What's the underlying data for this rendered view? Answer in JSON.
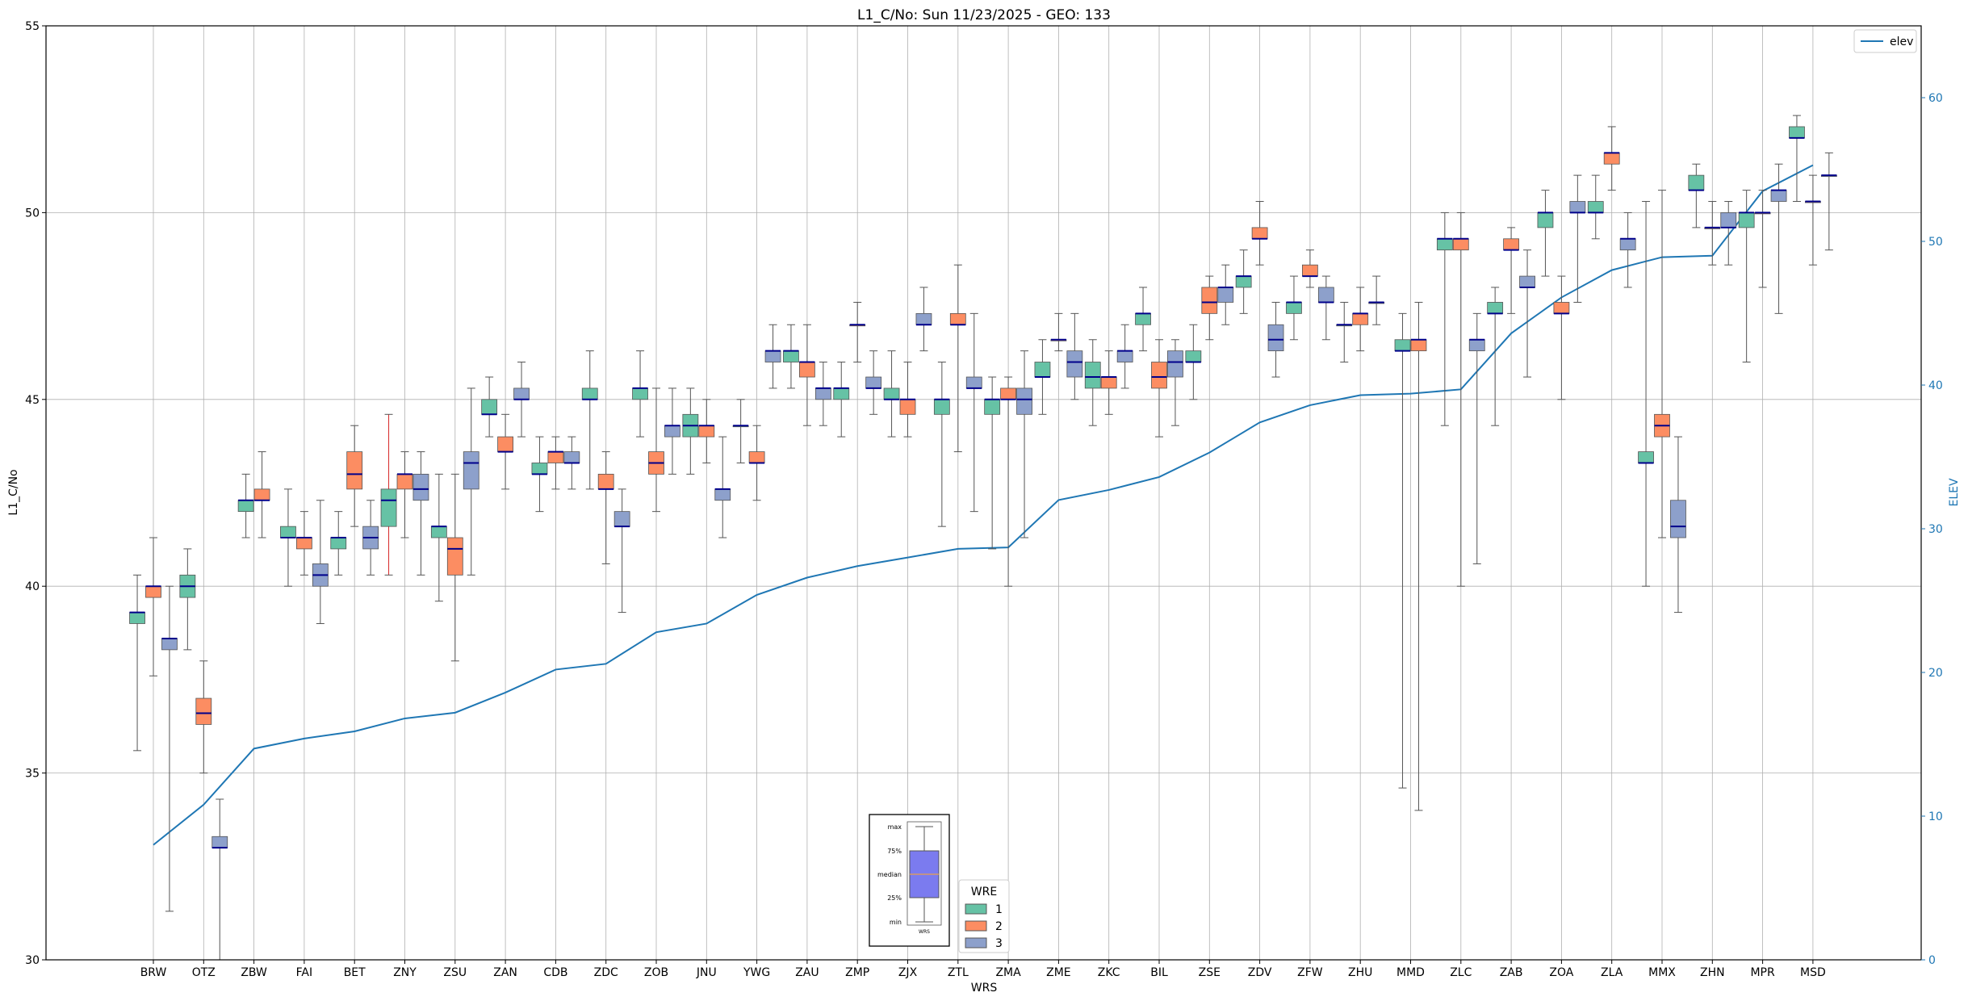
{
  "chart_data": {
    "type": "boxplot",
    "title": "L1_C/No: Sun 11/23/2025 - GEO: 133",
    "xlabel": "WRS",
    "ylabel": "L1_C/No",
    "y2label": "ELEV",
    "ylim": [
      30,
      55
    ],
    "y2lim": [
      0,
      65
    ],
    "yticks": [
      "30",
      "35",
      "40",
      "45",
      "50",
      "55"
    ],
    "y2ticks": [
      "0",
      "10",
      "20",
      "30",
      "40",
      "50",
      "60"
    ],
    "grid": true,
    "colors": {
      "1": "#66c2a5",
      "2": "#fc8d62",
      "3": "#8da0cb",
      "median": "#00008b",
      "elev": "#1f77b4",
      "red_whisker": "#d62728"
    },
    "categories": [
      "BRW",
      "OTZ",
      "ZBW",
      "FAI",
      "BET",
      "ZNY",
      "ZSU",
      "ZAN",
      "CDB",
      "ZDC",
      "ZOB",
      "JNU",
      "YWG",
      "ZAU",
      "ZMP",
      "ZJX",
      "ZTL",
      "ZMA",
      "ZME",
      "ZKC",
      "BIL",
      "ZSE",
      "ZDV",
      "ZFW",
      "ZHU",
      "MMD",
      "ZLC",
      "ZAB",
      "ZOA",
      "ZLA",
      "MMX",
      "ZHN",
      "MPR",
      "MSD"
    ],
    "elev": {
      "name": "elev",
      "values": [
        8.0,
        10.8,
        14.7,
        15.4,
        15.9,
        16.8,
        17.2,
        18.6,
        20.2,
        20.6,
        22.8,
        23.4,
        25.4,
        26.6,
        27.4,
        28.0,
        28.6,
        28.7,
        32.0,
        32.7,
        33.6,
        35.3,
        37.4,
        38.6,
        39.3,
        39.4,
        39.7,
        43.6,
        46.1,
        48.0,
        48.9,
        49.0,
        53.5,
        55.3
      ]
    },
    "boxes": [
      {
        "cat": "BRW",
        "wre": 1,
        "min": 35.6,
        "q1": 39.0,
        "med": 39.3,
        "q3": 39.3,
        "max": 40.3
      },
      {
        "cat": "BRW",
        "wre": 2,
        "min": 37.6,
        "q1": 39.7,
        "med": 40.0,
        "q3": 40.0,
        "max": 41.3
      },
      {
        "cat": "BRW",
        "wre": 3,
        "min": 31.3,
        "q1": 38.3,
        "med": 38.6,
        "q3": 38.6,
        "max": 40.0
      },
      {
        "cat": "OTZ",
        "wre": 1,
        "min": 38.3,
        "q1": 39.7,
        "med": 40.0,
        "q3": 40.3,
        "max": 41.0
      },
      {
        "cat": "OTZ",
        "wre": 2,
        "min": 35.0,
        "q1": 36.3,
        "med": 36.6,
        "q3": 37.0,
        "max": 38.0
      },
      {
        "cat": "OTZ",
        "wre": 3,
        "min": 30.0,
        "q1": 33.0,
        "med": 33.0,
        "q3": 33.3,
        "max": 34.3
      },
      {
        "cat": "ZBW",
        "wre": 1,
        "min": 41.3,
        "q1": 42.0,
        "med": 42.3,
        "q3": 42.3,
        "max": 43.0
      },
      {
        "cat": "ZBW",
        "wre": 2,
        "min": 41.3,
        "q1": 42.3,
        "med": 42.3,
        "q3": 42.6,
        "max": 43.6
      },
      {
        "cat": "FAI",
        "wre": 1,
        "min": 40.0,
        "q1": 41.3,
        "med": 41.3,
        "q3": 41.6,
        "max": 42.6
      },
      {
        "cat": "FAI",
        "wre": 2,
        "min": 40.3,
        "q1": 41.0,
        "med": 41.3,
        "q3": 41.3,
        "max": 42.0
      },
      {
        "cat": "FAI",
        "wre": 3,
        "min": 39.0,
        "q1": 40.0,
        "med": 40.3,
        "q3": 40.6,
        "max": 42.3
      },
      {
        "cat": "BET",
        "wre": 1,
        "min": 40.3,
        "q1": 41.0,
        "med": 41.3,
        "q3": 41.3,
        "max": 42.0
      },
      {
        "cat": "BET",
        "wre": 2,
        "min": 41.6,
        "q1": 42.6,
        "med": 43.0,
        "q3": 43.6,
        "max": 44.3
      },
      {
        "cat": "BET",
        "wre": 3,
        "min": 40.3,
        "q1": 41.0,
        "med": 41.3,
        "q3": 41.6,
        "max": 42.3
      },
      {
        "cat": "ZNY",
        "wre": 1,
        "min": 40.3,
        "q1": 41.6,
        "med": 42.3,
        "q3": 42.6,
        "max": 44.6,
        "whisker": "red"
      },
      {
        "cat": "ZNY",
        "wre": 2,
        "min": 41.3,
        "q1": 42.6,
        "med": 43.0,
        "q3": 43.0,
        "max": 43.6
      },
      {
        "cat": "ZNY",
        "wre": 3,
        "min": 40.3,
        "q1": 42.3,
        "med": 42.6,
        "q3": 43.0,
        "max": 43.6
      },
      {
        "cat": "ZSU",
        "wre": 1,
        "min": 39.6,
        "q1": 41.3,
        "med": 41.6,
        "q3": 41.6,
        "max": 43.0
      },
      {
        "cat": "ZSU",
        "wre": 2,
        "min": 38.0,
        "q1": 40.3,
        "med": 41.0,
        "q3": 41.3,
        "max": 43.0
      },
      {
        "cat": "ZSU",
        "wre": 3,
        "min": 40.3,
        "q1": 42.6,
        "med": 43.3,
        "q3": 43.6,
        "max": 45.3
      },
      {
        "cat": "ZAN",
        "wre": 1,
        "min": 44.0,
        "q1": 44.6,
        "med": 44.6,
        "q3": 45.0,
        "max": 45.6
      },
      {
        "cat": "ZAN",
        "wre": 2,
        "min": 42.6,
        "q1": 43.6,
        "med": 43.6,
        "q3": 44.0,
        "max": 44.6
      },
      {
        "cat": "ZAN",
        "wre": 3,
        "min": 44.0,
        "q1": 45.0,
        "med": 45.0,
        "q3": 45.3,
        "max": 46.0
      },
      {
        "cat": "CDB",
        "wre": 1,
        "min": 42.0,
        "q1": 43.0,
        "med": 43.0,
        "q3": 43.3,
        "max": 44.0
      },
      {
        "cat": "CDB",
        "wre": 2,
        "min": 42.6,
        "q1": 43.3,
        "med": 43.6,
        "q3": 43.6,
        "max": 44.0
      },
      {
        "cat": "CDB",
        "wre": 3,
        "min": 42.6,
        "q1": 43.3,
        "med": 43.3,
        "q3": 43.6,
        "max": 44.0
      },
      {
        "cat": "ZDC",
        "wre": 1,
        "min": 42.6,
        "q1": 45.0,
        "med": 45.0,
        "q3": 45.3,
        "max": 46.3
      },
      {
        "cat": "ZDC",
        "wre": 2,
        "min": 40.6,
        "q1": 42.6,
        "med": 42.6,
        "q3": 43.0,
        "max": 43.6
      },
      {
        "cat": "ZDC",
        "wre": 3,
        "min": 39.3,
        "q1": 41.6,
        "med": 41.6,
        "q3": 42.0,
        "max": 42.6
      },
      {
        "cat": "ZOB",
        "wre": 1,
        "min": 44.0,
        "q1": 45.0,
        "med": 45.3,
        "q3": 45.3,
        "max": 46.3
      },
      {
        "cat": "ZOB",
        "wre": 2,
        "min": 42.0,
        "q1": 43.0,
        "med": 43.3,
        "q3": 43.6,
        "max": 45.3
      },
      {
        "cat": "ZOB",
        "wre": 3,
        "min": 43.0,
        "q1": 44.0,
        "med": 44.3,
        "q3": 44.3,
        "max": 45.3
      },
      {
        "cat": "JNU",
        "wre": 1,
        "min": 43.0,
        "q1": 44.0,
        "med": 44.3,
        "q3": 44.6,
        "max": 45.3
      },
      {
        "cat": "JNU",
        "wre": 2,
        "min": 43.3,
        "q1": 44.0,
        "med": 44.3,
        "q3": 44.3,
        "max": 45.0
      },
      {
        "cat": "JNU",
        "wre": 3,
        "min": 41.3,
        "q1": 42.3,
        "med": 42.6,
        "q3": 42.6,
        "max": 44.0
      },
      {
        "cat": "YWG",
        "wre": 1,
        "min": 43.3,
        "q1": 44.3,
        "med": 44.3,
        "q3": 44.3,
        "max": 45.0
      },
      {
        "cat": "YWG",
        "wre": 2,
        "min": 42.3,
        "q1": 43.3,
        "med": 43.3,
        "q3": 43.6,
        "max": 44.3
      },
      {
        "cat": "YWG",
        "wre": 3,
        "min": 45.3,
        "q1": 46.0,
        "med": 46.3,
        "q3": 46.3,
        "max": 47.0
      },
      {
        "cat": "ZAU",
        "wre": 1,
        "min": 45.3,
        "q1": 46.0,
        "med": 46.3,
        "q3": 46.3,
        "max": 47.0
      },
      {
        "cat": "ZAU",
        "wre": 2,
        "min": 44.3,
        "q1": 45.6,
        "med": 46.0,
        "q3": 46.0,
        "max": 47.0
      },
      {
        "cat": "ZAU",
        "wre": 3,
        "min": 44.3,
        "q1": 45.0,
        "med": 45.3,
        "q3": 45.3,
        "max": 46.0
      },
      {
        "cat": "ZMP",
        "wre": 1,
        "min": 44.0,
        "q1": 45.0,
        "med": 45.3,
        "q3": 45.3,
        "max": 46.0
      },
      {
        "cat": "ZMP",
        "wre": 2,
        "min": 46.0,
        "q1": 47.0,
        "med": 47.0,
        "q3": 47.0,
        "max": 47.6
      },
      {
        "cat": "ZMP",
        "wre": 3,
        "min": 44.6,
        "q1": 45.3,
        "med": 45.3,
        "q3": 45.6,
        "max": 46.3
      },
      {
        "cat": "ZJX",
        "wre": 1,
        "min": 44.0,
        "q1": 45.0,
        "med": 45.0,
        "q3": 45.3,
        "max": 46.3
      },
      {
        "cat": "ZJX",
        "wre": 2,
        "min": 44.0,
        "q1": 44.6,
        "med": 45.0,
        "q3": 45.0,
        "max": 46.0
      },
      {
        "cat": "ZJX",
        "wre": 3,
        "min": 46.3,
        "q1": 47.0,
        "med": 47.0,
        "q3": 47.3,
        "max": 48.0
      },
      {
        "cat": "ZTL",
        "wre": 1,
        "min": 41.6,
        "q1": 44.6,
        "med": 45.0,
        "q3": 45.0,
        "max": 46.0
      },
      {
        "cat": "ZTL",
        "wre": 2,
        "min": 43.6,
        "q1": 47.0,
        "med": 47.0,
        "q3": 47.3,
        "max": 48.6
      },
      {
        "cat": "ZTL",
        "wre": 3,
        "min": 42.0,
        "q1": 45.3,
        "med": 45.3,
        "q3": 45.6,
        "max": 47.3
      },
      {
        "cat": "ZMA",
        "wre": 1,
        "min": 41.0,
        "q1": 44.6,
        "med": 45.0,
        "q3": 45.0,
        "max": 45.6
      },
      {
        "cat": "ZMA",
        "wre": 2,
        "min": 40.0,
        "q1": 45.0,
        "med": 45.0,
        "q3": 45.3,
        "max": 45.6
      },
      {
        "cat": "ZMA",
        "wre": 3,
        "min": 41.3,
        "q1": 44.6,
        "med": 45.0,
        "q3": 45.3,
        "max": 46.3
      },
      {
        "cat": "ZME",
        "wre": 1,
        "min": 44.6,
        "q1": 45.6,
        "med": 45.6,
        "q3": 46.0,
        "max": 46.6
      },
      {
        "cat": "ZME",
        "wre": 2,
        "min": 46.3,
        "q1": 46.6,
        "med": 46.6,
        "q3": 46.6,
        "max": 47.3
      },
      {
        "cat": "ZME",
        "wre": 3,
        "min": 45.0,
        "q1": 45.6,
        "med": 46.0,
        "q3": 46.3,
        "max": 47.3
      },
      {
        "cat": "ZKC",
        "wre": 1,
        "min": 44.3,
        "q1": 45.3,
        "med": 45.6,
        "q3": 46.0,
        "max": 46.6
      },
      {
        "cat": "ZKC",
        "wre": 2,
        "min": 44.6,
        "q1": 45.3,
        "med": 45.6,
        "q3": 45.6,
        "max": 46.3
      },
      {
        "cat": "ZKC",
        "wre": 3,
        "min": 45.3,
        "q1": 46.0,
        "med": 46.3,
        "q3": 46.3,
        "max": 47.0
      },
      {
        "cat": "BIL",
        "wre": 1,
        "min": 46.3,
        "q1": 47.0,
        "med": 47.3,
        "q3": 47.3,
        "max": 48.0
      },
      {
        "cat": "BIL",
        "wre": 2,
        "min": 44.0,
        "q1": 45.3,
        "med": 45.6,
        "q3": 46.0,
        "max": 46.6
      },
      {
        "cat": "BIL",
        "wre": 3,
        "min": 44.3,
        "q1": 45.6,
        "med": 46.0,
        "q3": 46.3,
        "max": 46.6
      },
      {
        "cat": "ZSE",
        "wre": 1,
        "min": 45.0,
        "q1": 46.0,
        "med": 46.0,
        "q3": 46.3,
        "max": 47.0
      },
      {
        "cat": "ZSE",
        "wre": 2,
        "min": 46.6,
        "q1": 47.3,
        "med": 47.6,
        "q3": 48.0,
        "max": 48.3
      },
      {
        "cat": "ZSE",
        "wre": 3,
        "min": 47.0,
        "q1": 47.6,
        "med": 48.0,
        "q3": 48.0,
        "max": 48.6
      },
      {
        "cat": "ZDV",
        "wre": 1,
        "min": 47.3,
        "q1": 48.0,
        "med": 48.3,
        "q3": 48.3,
        "max": 49.0
      },
      {
        "cat": "ZDV",
        "wre": 2,
        "min": 48.6,
        "q1": 49.3,
        "med": 49.3,
        "q3": 49.6,
        "max": 50.3
      },
      {
        "cat": "ZDV",
        "wre": 3,
        "min": 45.6,
        "q1": 46.3,
        "med": 46.6,
        "q3": 47.0,
        "max": 47.6
      },
      {
        "cat": "ZFW",
        "wre": 1,
        "min": 46.6,
        "q1": 47.3,
        "med": 47.6,
        "q3": 47.6,
        "max": 48.3
      },
      {
        "cat": "ZFW",
        "wre": 2,
        "min": 48.0,
        "q1": 48.3,
        "med": 48.3,
        "q3": 48.6,
        "max": 49.0
      },
      {
        "cat": "ZFW",
        "wre": 3,
        "min": 46.6,
        "q1": 47.6,
        "med": 47.6,
        "q3": 48.0,
        "max": 48.3
      },
      {
        "cat": "ZHU",
        "wre": 1,
        "min": 46.0,
        "q1": 47.0,
        "med": 47.0,
        "q3": 47.0,
        "max": 47.6
      },
      {
        "cat": "ZHU",
        "wre": 2,
        "min": 46.3,
        "q1": 47.0,
        "med": 47.3,
        "q3": 47.3,
        "max": 48.0
      },
      {
        "cat": "ZHU",
        "wre": 3,
        "min": 47.0,
        "q1": 47.6,
        "med": 47.6,
        "q3": 47.6,
        "max": 48.3
      },
      {
        "cat": "MMD",
        "wre": 1,
        "min": 34.6,
        "q1": 46.3,
        "med": 46.3,
        "q3": 46.6,
        "max": 47.3
      },
      {
        "cat": "MMD",
        "wre": 2,
        "min": 34.0,
        "q1": 46.3,
        "med": 46.6,
        "q3": 46.6,
        "max": 47.6
      },
      {
        "cat": "ZLC",
        "wre": 1,
        "min": 44.3,
        "q1": 49.0,
        "med": 49.3,
        "q3": 49.3,
        "max": 50.0
      },
      {
        "cat": "ZLC",
        "wre": 2,
        "min": 40.0,
        "q1": 49.0,
        "med": 49.3,
        "q3": 49.3,
        "max": 50.0
      },
      {
        "cat": "ZLC",
        "wre": 3,
        "min": 40.6,
        "q1": 46.3,
        "med": 46.6,
        "q3": 46.6,
        "max": 47.3
      },
      {
        "cat": "ZAB",
        "wre": 1,
        "min": 44.3,
        "q1": 47.3,
        "med": 47.3,
        "q3": 47.6,
        "max": 48.0
      },
      {
        "cat": "ZAB",
        "wre": 2,
        "min": 47.3,
        "q1": 49.0,
        "med": 49.0,
        "q3": 49.3,
        "max": 49.6
      },
      {
        "cat": "ZAB",
        "wre": 3,
        "min": 45.6,
        "q1": 48.0,
        "med": 48.0,
        "q3": 48.3,
        "max": 49.0
      },
      {
        "cat": "ZOA",
        "wre": 1,
        "min": 48.3,
        "q1": 49.6,
        "med": 50.0,
        "q3": 50.0,
        "max": 50.6
      },
      {
        "cat": "ZOA",
        "wre": 2,
        "min": 45.0,
        "q1": 47.3,
        "med": 47.3,
        "q3": 47.6,
        "max": 48.3
      },
      {
        "cat": "ZOA",
        "wre": 3,
        "min": 47.6,
        "q1": 50.0,
        "med": 50.0,
        "q3": 50.3,
        "max": 51.0
      },
      {
        "cat": "ZLA",
        "wre": 1,
        "min": 49.3,
        "q1": 50.0,
        "med": 50.0,
        "q3": 50.3,
        "max": 51.0
      },
      {
        "cat": "ZLA",
        "wre": 2,
        "min": 50.6,
        "q1": 51.3,
        "med": 51.6,
        "q3": 51.6,
        "max": 52.3
      },
      {
        "cat": "ZLA",
        "wre": 3,
        "min": 48.0,
        "q1": 49.0,
        "med": 49.3,
        "q3": 49.3,
        "max": 50.0
      },
      {
        "cat": "MMX",
        "wre": 1,
        "min": 40.0,
        "q1": 43.3,
        "med": 43.3,
        "q3": 43.6,
        "max": 50.3
      },
      {
        "cat": "MMX",
        "wre": 2,
        "min": 41.3,
        "q1": 44.0,
        "med": 44.3,
        "q3": 44.6,
        "max": 50.6
      },
      {
        "cat": "MMX",
        "wre": 3,
        "min": 39.3,
        "q1": 41.3,
        "med": 41.6,
        "q3": 42.3,
        "max": 44.0
      },
      {
        "cat": "ZHN",
        "wre": 1,
        "min": 49.6,
        "q1": 50.6,
        "med": 50.6,
        "q3": 51.0,
        "max": 51.3
      },
      {
        "cat": "ZHN",
        "wre": 2,
        "min": 48.6,
        "q1": 49.6,
        "med": 49.6,
        "q3": 49.6,
        "max": 50.3
      },
      {
        "cat": "ZHN",
        "wre": 3,
        "min": 48.6,
        "q1": 49.6,
        "med": 49.6,
        "q3": 50.0,
        "max": 50.3
      },
      {
        "cat": "MPR",
        "wre": 1,
        "min": 46.0,
        "q1": 49.6,
        "med": 50.0,
        "q3": 50.0,
        "max": 50.6
      },
      {
        "cat": "MPR",
        "wre": 2,
        "min": 48.0,
        "q1": 50.0,
        "med": 50.0,
        "q3": 50.0,
        "max": 50.6
      },
      {
        "cat": "MPR",
        "wre": 3,
        "min": 47.3,
        "q1": 50.3,
        "med": 50.6,
        "q3": 50.6,
        "max": 51.3
      },
      {
        "cat": "MSD",
        "wre": 1,
        "min": 50.3,
        "q1": 52.0,
        "med": 52.0,
        "q3": 52.3,
        "max": 52.6
      },
      {
        "cat": "MSD",
        "wre": 2,
        "min": 48.6,
        "q1": 50.3,
        "med": 50.3,
        "q3": 50.3,
        "max": 51.0
      },
      {
        "cat": "MSD",
        "wre": 3,
        "min": 49.0,
        "q1": 51.0,
        "med": 51.0,
        "q3": 51.0,
        "max": 51.6
      }
    ],
    "legend": {
      "title": "WRE",
      "entries": [
        {
          "key": "1",
          "label": "1"
        },
        {
          "key": "2",
          "label": "2"
        },
        {
          "key": "3",
          "label": "3"
        }
      ],
      "placement": "lower-center"
    },
    "elev_legend": {
      "label": "elev",
      "placement": "top-right"
    },
    "key_box": {
      "labels": [
        "max",
        "75%",
        "median",
        "25%",
        "min"
      ],
      "xlabel": "WRS",
      "placement": "lower-center"
    }
  }
}
